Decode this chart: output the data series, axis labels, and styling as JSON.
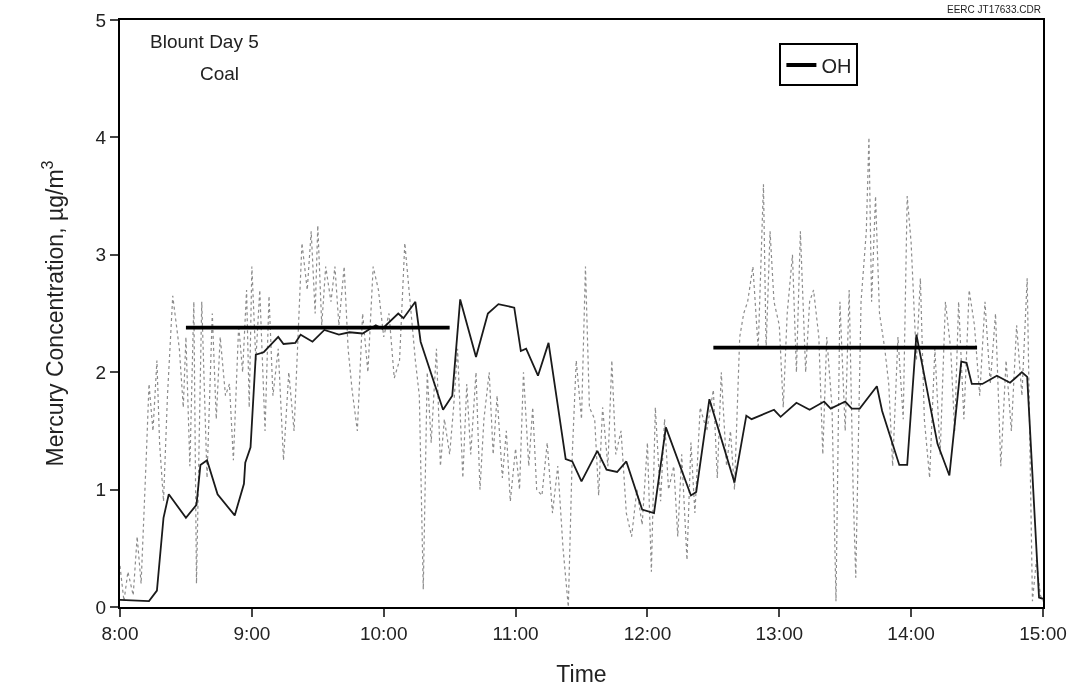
{
  "chart_data": {
    "type": "line",
    "xlabel": "Time",
    "ylabel": "Mercury Concentration, µg/m$^{3}$",
    "annotations": [
      "Blount Day 5",
      "Coal",
      "EERC JT17633.CDR"
    ],
    "xlim": [
      8,
      15
    ],
    "xticks": [
      {
        "value": 8,
        "label": "8:00"
      },
      {
        "value": 9,
        "label": "9:00"
      },
      {
        "value": 10,
        "label": "10:00"
      },
      {
        "value": 11,
        "label": "11:00"
      },
      {
        "value": 12,
        "label": "12:00"
      },
      {
        "value": 13,
        "label": "13:00"
      },
      {
        "value": 14,
        "label": "14:00"
      },
      {
        "value": 15,
        "label": "15:00"
      }
    ],
    "ylim": [
      0,
      5
    ],
    "yticks": [
      0,
      1,
      2,
      3,
      4,
      5
    ],
    "grid": false,
    "legend": "top right",
    "marker": "none",
    "series": [
      {
        "color": "#8c8c8c",
        "line_style": "dotted",
        "x": [
          8.0,
          8.03,
          8.06,
          8.1,
          8.13,
          8.16,
          8.2,
          8.22,
          8.25,
          8.28,
          8.3,
          8.33,
          8.36,
          8.4,
          8.45,
          8.48,
          8.5,
          8.53,
          8.56,
          8.58,
          8.62,
          8.66,
          8.7,
          8.73,
          8.76,
          8.8,
          8.83,
          8.86,
          8.9,
          8.93,
          8.96,
          8.98,
          9.0,
          9.03,
          9.06,
          9.1,
          9.13,
          9.16,
          9.2,
          9.24,
          9.28,
          9.32,
          9.35,
          9.38,
          9.42,
          9.45,
          9.48,
          9.5,
          9.53,
          9.56,
          9.6,
          9.63,
          9.66,
          9.7,
          9.73,
          9.76,
          9.8,
          9.84,
          9.88,
          9.92,
          9.96,
          10.0,
          10.04,
          10.08,
          10.12,
          10.16,
          10.2,
          10.24,
          10.27,
          10.3,
          10.33,
          10.36,
          10.4,
          10.43,
          10.46,
          10.5,
          10.53,
          10.56,
          10.6,
          10.63,
          10.66,
          10.7,
          10.73,
          10.76,
          10.8,
          10.83,
          10.86,
          10.9,
          10.93,
          10.96,
          11.0,
          11.03,
          11.06,
          11.1,
          11.13,
          11.16,
          11.2,
          11.24,
          11.28,
          11.32,
          11.36,
          11.4,
          11.43,
          11.46,
          11.5,
          11.53,
          11.56,
          11.6,
          11.63,
          11.66,
          11.7,
          11.73,
          11.76,
          11.8,
          11.84,
          11.88,
          11.92,
          11.96,
          12.0,
          12.03,
          12.06,
          12.1,
          12.13,
          12.16,
          12.2,
          12.23,
          12.26,
          12.3,
          12.33,
          12.36,
          12.4,
          12.45,
          12.5,
          12.53,
          12.56,
          12.6,
          12.63,
          12.66,
          12.7,
          12.73,
          12.76,
          12.8,
          12.84,
          12.88,
          12.9,
          12.93,
          12.96,
          13.0,
          13.03,
          13.06,
          13.1,
          13.13,
          13.16,
          13.2,
          13.23,
          13.26,
          13.3,
          13.33,
          13.36,
          13.4,
          13.43,
          13.46,
          13.5,
          13.53,
          13.56,
          13.58,
          13.62,
          13.66,
          13.68,
          13.7,
          13.73,
          13.76,
          13.8,
          13.83,
          13.86,
          13.9,
          13.94,
          13.97,
          14.0,
          14.04,
          14.07,
          14.1,
          14.14,
          14.18,
          14.22,
          14.26,
          14.3,
          14.33,
          14.36,
          14.4,
          14.44,
          14.48,
          14.52,
          14.56,
          14.6,
          14.64,
          14.68,
          14.72,
          14.76,
          14.8,
          14.84,
          14.88,
          14.92,
          14.95,
          14.98,
          15.0
        ],
        "values": [
          0.35,
          0.05,
          0.3,
          0.1,
          0.6,
          0.2,
          1.3,
          1.9,
          1.5,
          2.1,
          1.4,
          0.9,
          1.8,
          2.65,
          2.2,
          1.7,
          2.3,
          1.2,
          2.6,
          0.2,
          2.6,
          1.1,
          2.5,
          1.6,
          2.3,
          1.8,
          1.9,
          1.25,
          2.4,
          2.0,
          2.7,
          1.7,
          2.9,
          2.1,
          2.7,
          1.5,
          2.65,
          1.8,
          2.2,
          1.25,
          2.0,
          1.5,
          2.3,
          3.1,
          2.7,
          3.2,
          2.5,
          3.25,
          2.4,
          2.9,
          2.6,
          2.9,
          2.4,
          2.9,
          2.2,
          1.85,
          1.5,
          2.5,
          2.0,
          2.9,
          2.7,
          2.3,
          2.5,
          1.95,
          2.1,
          3.1,
          2.6,
          2.1,
          1.8,
          0.15,
          2.0,
          1.4,
          2.2,
          1.2,
          1.6,
          1.3,
          1.7,
          2.2,
          1.1,
          1.9,
          1.3,
          2.0,
          1.0,
          1.6,
          2.0,
          1.3,
          1.8,
          1.1,
          1.5,
          0.9,
          1.35,
          1.0,
          2.0,
          1.2,
          1.7,
          1.0,
          0.95,
          1.4,
          0.8,
          1.2,
          0.5,
          0.0,
          1.3,
          2.1,
          1.6,
          2.9,
          1.7,
          1.6,
          0.95,
          1.7,
          1.2,
          2.1,
          1.3,
          1.5,
          0.8,
          0.6,
          1.0,
          0.7,
          1.4,
          0.3,
          1.7,
          0.9,
          1.6,
          1.0,
          1.2,
          0.6,
          1.3,
          0.4,
          1.4,
          0.8,
          1.7,
          1.5,
          1.85,
          1.1,
          2.0,
          1.2,
          1.5,
          1.0,
          2.3,
          2.5,
          2.6,
          2.9,
          2.2,
          3.6,
          2.2,
          3.2,
          2.6,
          2.4,
          1.7,
          2.5,
          3.0,
          2.0,
          3.2,
          2.0,
          2.6,
          2.7,
          2.3,
          1.3,
          2.3,
          1.7,
          0.05,
          2.6,
          1.5,
          2.7,
          1.0,
          0.25,
          2.6,
          3.2,
          4.0,
          2.6,
          3.5,
          2.5,
          2.2,
          1.9,
          1.2,
          2.3,
          1.6,
          3.5,
          3.1,
          2.1,
          2.8,
          1.6,
          1.1,
          2.2,
          1.3,
          2.6,
          2.2,
          1.5,
          2.6,
          1.6,
          2.7,
          2.4,
          1.8,
          2.6,
          1.9,
          2.5,
          1.2,
          2.1,
          1.5,
          2.4,
          1.8,
          2.8,
          0.05,
          0.4,
          0.1,
          0.05
        ]
      },
      {
        "color": "#1a1a1a",
        "line_style": "solid",
        "x": [
          8.0,
          8.22,
          8.28,
          8.33,
          8.37,
          8.5,
          8.58,
          8.61,
          8.66,
          8.74,
          8.87,
          8.94,
          8.95,
          8.99,
          9.03,
          9.09,
          9.2,
          9.24,
          9.33,
          9.37,
          9.46,
          9.55,
          9.66,
          9.74,
          9.84,
          9.94,
          9.99,
          10.11,
          10.15,
          10.24,
          10.28,
          10.45,
          10.52,
          10.58,
          10.7,
          10.79,
          10.87,
          10.99,
          11.04,
          11.08,
          11.17,
          11.25,
          11.38,
          11.43,
          11.5,
          11.62,
          11.69,
          11.77,
          11.84,
          11.96,
          12.05,
          12.14,
          12.33,
          12.37,
          12.47,
          12.66,
          12.75,
          12.79,
          12.96,
          13.01,
          13.13,
          13.23,
          13.34,
          13.39,
          13.5,
          13.55,
          13.61,
          13.74,
          13.78,
          13.91,
          13.97,
          14.04,
          14.2,
          14.29,
          14.38,
          14.42,
          14.46,
          14.54,
          14.65,
          14.75,
          14.84,
          14.88,
          14.97,
          15.0
        ],
        "values": [
          0.06,
          0.05,
          0.14,
          0.76,
          0.96,
          0.76,
          0.87,
          1.21,
          1.25,
          0.96,
          0.78,
          1.05,
          1.23,
          1.36,
          2.15,
          2.17,
          2.3,
          2.24,
          2.25,
          2.32,
          2.26,
          2.36,
          2.32,
          2.34,
          2.33,
          2.4,
          2.37,
          2.5,
          2.46,
          2.6,
          2.26,
          1.68,
          1.8,
          2.62,
          2.13,
          2.5,
          2.58,
          2.55,
          2.18,
          2.2,
          1.97,
          2.25,
          1.26,
          1.24,
          1.07,
          1.33,
          1.17,
          1.15,
          1.24,
          0.83,
          0.8,
          1.53,
          0.95,
          0.98,
          1.77,
          1.06,
          1.63,
          1.6,
          1.68,
          1.62,
          1.74,
          1.68,
          1.75,
          1.69,
          1.75,
          1.69,
          1.69,
          1.88,
          1.67,
          1.21,
          1.21,
          2.32,
          1.39,
          1.12,
          2.09,
          2.08,
          1.9,
          1.9,
          1.97,
          1.91,
          2.0,
          1.96,
          0.08,
          0.07
        ]
      },
      {
        "name": "OH",
        "color": "#000000",
        "line_style": "solid",
        "x": [
          8.5,
          10.5,
          null,
          12.5,
          14.5
        ],
        "values": [
          2.38,
          2.38,
          null,
          2.21,
          2.21
        ]
      }
    ]
  }
}
